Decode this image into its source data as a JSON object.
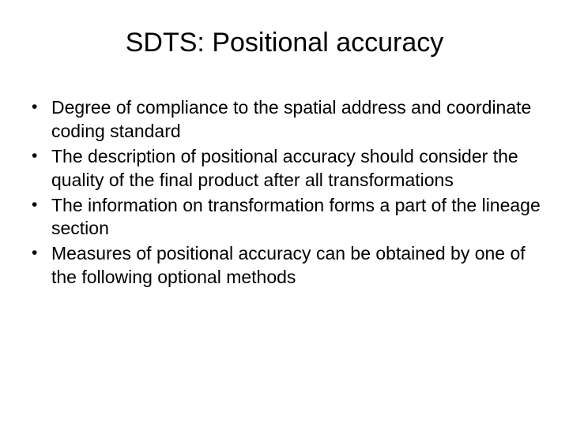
{
  "slide": {
    "title": "SDTS: Positional accuracy",
    "bullets": [
      "Degree of compliance to the spatial address and coordinate coding standard",
      "The description of positional accuracy should consider the quality of the final product after all transformations",
      "The information on transformation forms a part of the lineage section",
      "Measures of positional accuracy can be obtained by one of the following optional methods"
    ],
    "background_color": "#ffffff",
    "text_color": "#000000",
    "title_fontsize": 34,
    "body_fontsize": 23
  }
}
